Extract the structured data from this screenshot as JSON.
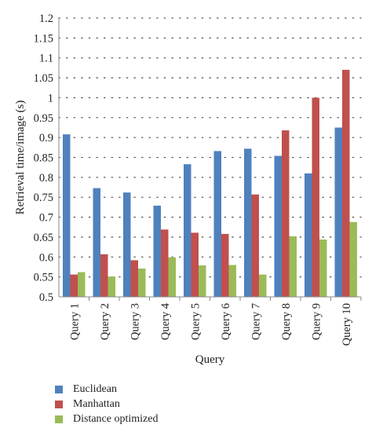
{
  "chart_data": {
    "type": "bar",
    "title": "",
    "xlabel": "Query",
    "ylabel": "Retrieval time/image (s)",
    "ylim": [
      0.5,
      1.2
    ],
    "yticks": [
      "0.5",
      "0.55",
      "0.6",
      "0.65",
      "0.7",
      "0.75",
      "0.8",
      "0.85",
      "0.9",
      "0.95",
      "1",
      "1.05",
      "1.1",
      "1.15",
      "1.2"
    ],
    "grid": true,
    "legend_position": "bottom",
    "categories": [
      "Query 1",
      "Query 2",
      "Query 3",
      "Query 4",
      "Query 5",
      "Query 6",
      "Query 7",
      "Query 8",
      "Query 9",
      "Query 10"
    ],
    "series": [
      {
        "name": "Euclidean",
        "color": "#4f81bd",
        "values": [
          0.908,
          0.773,
          0.762,
          0.729,
          0.833,
          0.866,
          0.872,
          0.854,
          0.81,
          0.925
        ]
      },
      {
        "name": "Manhattan",
        "color": "#c0504d",
        "values": [
          0.556,
          0.607,
          0.592,
          0.669,
          0.661,
          0.658,
          0.757,
          0.918,
          1.0,
          1.07
        ]
      },
      {
        "name": "Distance optimized",
        "color": "#9bbb59",
        "values": [
          0.562,
          0.551,
          0.571,
          0.599,
          0.579,
          0.58,
          0.556,
          0.652,
          0.644,
          0.688
        ]
      }
    ]
  }
}
